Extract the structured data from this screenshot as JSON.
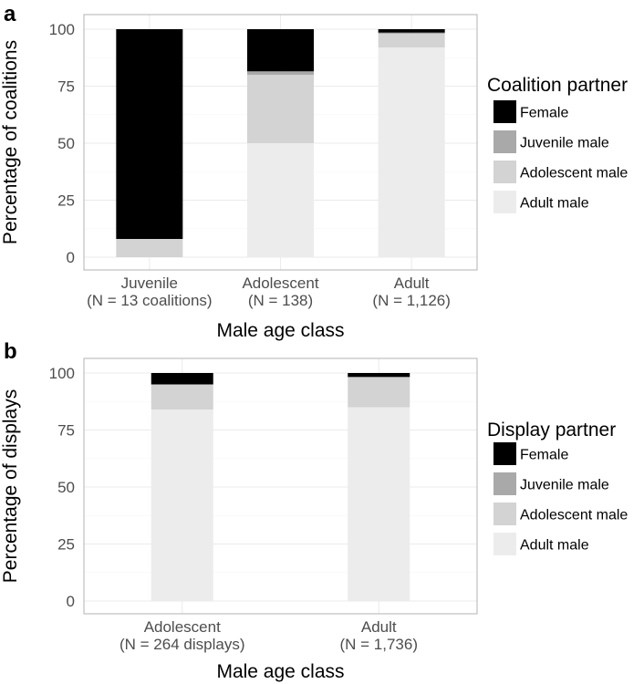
{
  "chart_data": [
    {
      "panel": "a",
      "type": "bar",
      "stacked": true,
      "categories": [
        {
          "line1": "Juvenile",
          "line2": "(N = 13 coalitions)"
        },
        {
          "line1": "Adolescent",
          "line2": "(N = 138)"
        },
        {
          "line1": "Adult",
          "line2": "(N = 1,126)"
        }
      ],
      "series": [
        {
          "name": "Adult male",
          "color": "#ececec",
          "values": [
            0,
            50,
            92
          ]
        },
        {
          "name": "Adolescent male",
          "color": "#d3d3d3",
          "values": [
            8,
            30,
            6
          ]
        },
        {
          "name": "Juvenile male",
          "color": "#a9a9a9",
          "values": [
            0,
            1.5,
            0.5
          ]
        },
        {
          "name": "Female",
          "color": "#000000",
          "values": [
            92,
            18.5,
            1.5
          ]
        }
      ],
      "legend_order": [
        "Female",
        "Juvenile male",
        "Adolescent male",
        "Adult male"
      ],
      "legend_title": "Coalition partner",
      "legend_position": "right",
      "xlabel": "Male age class",
      "ylabel": "Percentage of coalitions",
      "ylim": [
        0,
        100
      ],
      "yticks": [
        "0",
        "25",
        "50",
        "75",
        "100"
      ],
      "grid": true
    },
    {
      "panel": "b",
      "type": "bar",
      "stacked": true,
      "categories": [
        {
          "line1": "Adolescent",
          "line2": "(N = 264 displays)"
        },
        {
          "line1": "Adult",
          "line2": "(N = 1,736)"
        }
      ],
      "series": [
        {
          "name": "Adult male",
          "color": "#ececec",
          "values": [
            84,
            85
          ]
        },
        {
          "name": "Adolescent male",
          "color": "#d3d3d3",
          "values": [
            11,
            13
          ]
        },
        {
          "name": "Juvenile male",
          "color": "#a9a9a9",
          "values": [
            0,
            0.3
          ]
        },
        {
          "name": "Female",
          "color": "#000000",
          "values": [
            5,
            1.7
          ]
        }
      ],
      "legend_order": [
        "Female",
        "Juvenile male",
        "Adolescent male",
        "Adult male"
      ],
      "legend_title": "Display partner",
      "legend_position": "right",
      "xlabel": "Male age class",
      "ylabel": "Percentage of displays",
      "ylim": [
        0,
        100
      ],
      "yticks": [
        "0",
        "25",
        "50",
        "75",
        "100"
      ],
      "grid": true
    }
  ]
}
